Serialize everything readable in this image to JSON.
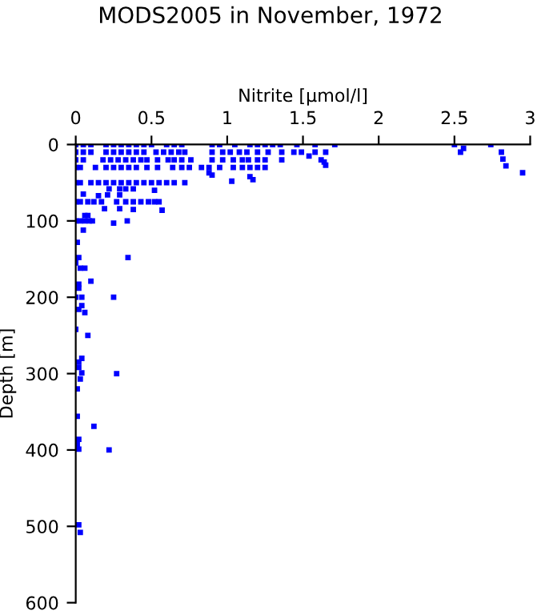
{
  "chart_data": {
    "type": "scatter",
    "title": "MODS2005 in November, 1972",
    "xlabel": "Nitrite [µmol/l]",
    "ylabel": "Depth [m]",
    "xlim": [
      0,
      3
    ],
    "ylim": [
      600,
      0
    ],
    "xticks": [
      0,
      0.5,
      1,
      1.5,
      2,
      2.5,
      3
    ],
    "yticks": [
      0,
      100,
      200,
      300,
      400,
      500,
      600
    ],
    "grid": false,
    "marker": "square",
    "series": [
      {
        "color": "#0000ff",
        "x": [
          0,
          0.05,
          0.1,
          0.2,
          0.25,
          0.3,
          0.35,
          0.4,
          0.45,
          0.5,
          0.6,
          0.65,
          0.7,
          0.9,
          0.95,
          1.05,
          1.15,
          1.2,
          1.25,
          1.3,
          1.35,
          1.46,
          1.58,
          1.71,
          2.5,
          2.74,
          0,
          0.05,
          0.1,
          0.2,
          0.25,
          0.3,
          0.35,
          0.4,
          0.45,
          0.53,
          0.58,
          0.63,
          0.68,
          0.72,
          0.9,
          0.97,
          1.02,
          1.08,
          1.13,
          1.2,
          1.27,
          1.36,
          1.44,
          1.49,
          1.58,
          1.65,
          2.54,
          2.81,
          2.56,
          1.54,
          1.62,
          1.64,
          1.65,
          2.82,
          2.84,
          2.95,
          0,
          0.05,
          0.18,
          0.23,
          0.28,
          0.33,
          0.38,
          0.43,
          0.47,
          0.54,
          0.61,
          0.65,
          0.7,
          0.76,
          0.9,
          0.97,
          1.04,
          1.1,
          1.14,
          1.2,
          1.25,
          1.36,
          0,
          0.03,
          0.13,
          0.2,
          0.25,
          0.3,
          0.35,
          0.4,
          0.47,
          0.54,
          0.64,
          0.7,
          0.75,
          0.83,
          0.88,
          0.95,
          1.04,
          1.1,
          1.15,
          1.2,
          1.25,
          0.88,
          0.9,
          1.03,
          1.15,
          1.17,
          0,
          0.03,
          0.1,
          0.15,
          0.2,
          0.25,
          0.3,
          0.35,
          0.4,
          0.45,
          0.5,
          0.55,
          0.6,
          0.65,
          0.72,
          0.22,
          0.29,
          0.33,
          0.38,
          0.52,
          0.05,
          0.15,
          0.21,
          0.29,
          0,
          0.03,
          0.08,
          0.12,
          0.17,
          0.27,
          0.33,
          0.38,
          0.43,
          0.48,
          0.52,
          0.55,
          0.19,
          0.29,
          0.38,
          0.57,
          0,
          0.03,
          0.06,
          0.09,
          0.11,
          0.25,
          0.34,
          0.06,
          0.08,
          0.05,
          0.01,
          0,
          0.02,
          0.345,
          0.03,
          0.06,
          0.1,
          0.02,
          0.02,
          0,
          0.04,
          0.25,
          0.04,
          0.02,
          0.06,
          0,
          0.08,
          0.04,
          0.02,
          0.02,
          0.04,
          0.27,
          0.03,
          0.01,
          0.01,
          0.12,
          0.02,
          0.01,
          0.02,
          0.22,
          0.02,
          0.03
        ],
        "values": [
          0,
          0,
          0,
          0,
          0,
          0,
          0,
          0,
          0,
          0,
          0,
          0,
          0,
          0,
          0,
          0,
          0,
          0,
          0,
          0,
          0,
          0,
          0,
          0,
          0,
          0,
          10,
          10,
          10,
          10,
          10,
          10,
          10,
          10,
          10,
          10,
          10,
          10,
          10,
          10,
          10,
          10,
          10,
          10,
          10,
          10,
          10,
          10,
          10,
          10,
          10,
          10,
          10,
          10,
          5,
          15,
          20,
          23,
          27,
          19,
          28,
          37,
          20,
          20,
          20,
          20,
          20,
          20,
          20,
          20,
          20,
          20,
          20,
          20,
          20,
          20,
          20,
          20,
          20,
          20,
          20,
          20,
          20,
          20,
          30,
          30,
          30,
          30,
          30,
          30,
          30,
          30,
          30,
          30,
          30,
          30,
          30,
          30,
          30,
          30,
          30,
          30,
          30,
          30,
          30,
          37,
          40,
          48,
          42,
          46,
          50,
          50,
          50,
          50,
          50,
          50,
          50,
          50,
          50,
          50,
          50,
          50,
          50,
          50,
          50,
          58,
          58,
          58,
          58,
          60,
          65,
          67,
          66,
          66,
          75,
          75,
          75,
          75,
          75,
          75,
          75,
          75,
          75,
          75,
          75,
          75,
          84,
          84,
          85,
          86,
          100,
          100,
          100,
          100,
          100,
          103,
          100,
          93,
          93,
          112,
          128,
          155,
          148,
          148,
          162,
          162,
          179,
          183,
          188,
          200,
          200,
          200,
          211,
          216,
          220,
          242,
          250,
          280,
          285,
          292,
          299,
          300,
          307,
          320,
          356,
          369,
          386,
          393,
          399,
          400,
          498,
          508
        ]
      }
    ]
  }
}
